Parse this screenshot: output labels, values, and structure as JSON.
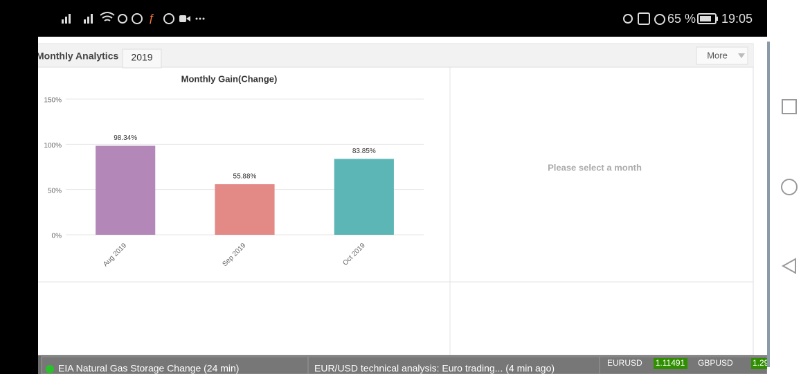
{
  "status_bar": {
    "battery": "65 %",
    "time": "19:05"
  },
  "tabs": [
    "Monthly Analytics",
    "2019"
  ],
  "more_button": "More",
  "chart_data": {
    "type": "bar",
    "title": "Monthly Gain(Change)",
    "categories": [
      "Aug 2019",
      "Sep 2019",
      "Oct 2019"
    ],
    "values": [
      98.34,
      55.88,
      83.85
    ],
    "value_labels": [
      "98.34%",
      "55.88%",
      "83.85%"
    ],
    "colors": [
      "#b388b9",
      "#e38986",
      "#5bb6b5"
    ],
    "ylim": [
      0,
      150
    ],
    "yticks": [
      {
        "value": 0,
        "label": "0%"
      },
      {
        "value": 50,
        "label": "50%"
      },
      {
        "value": 100,
        "label": "100%"
      },
      {
        "value": 150,
        "label": "150%"
      }
    ],
    "grid": true
  },
  "placeholder": "Please select a month",
  "ticker": {
    "news": [
      "EIA Natural Gas Storage Change (24 min)",
      "EUR/USD technical analysis: Euro trading...  (4 min ago)"
    ],
    "quotes": [
      {
        "symbol": "EURUSD",
        "price": "1.11491"
      },
      {
        "symbol": "GBPUSD",
        "price": "1.29"
      }
    ]
  }
}
